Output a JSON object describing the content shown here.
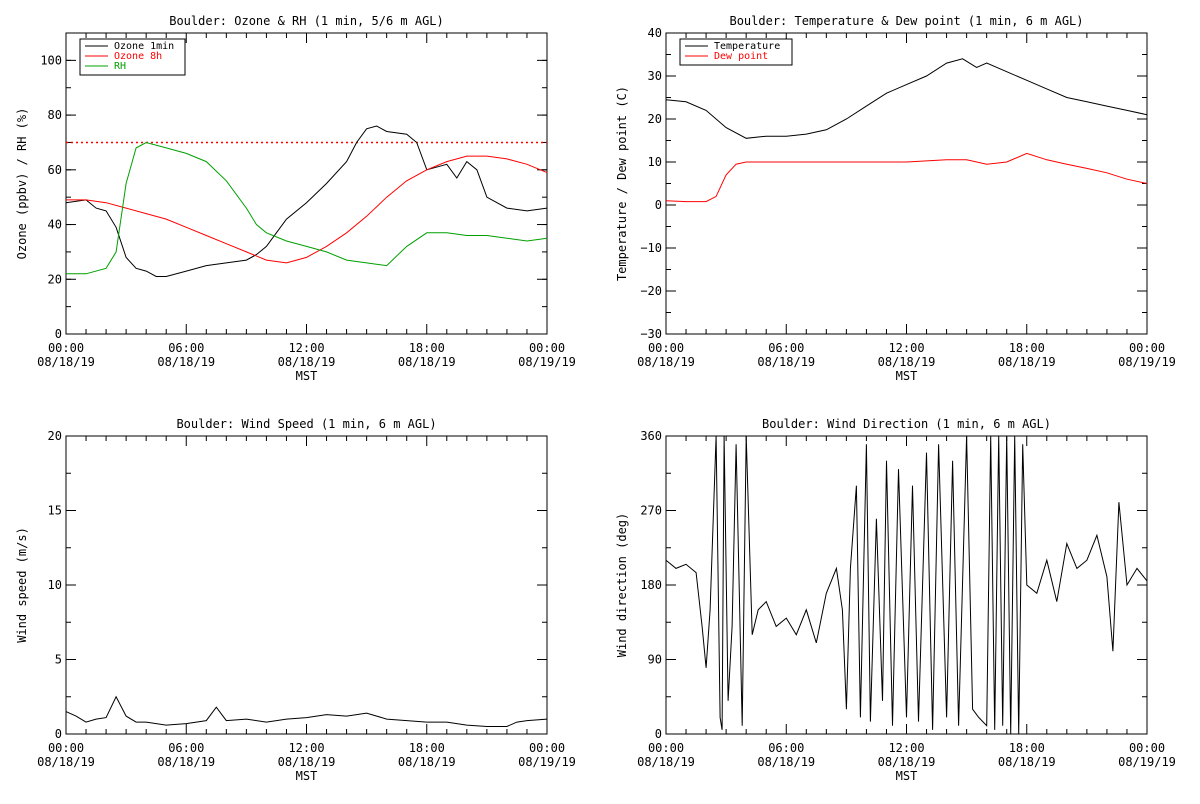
{
  "chart_data": [
    {
      "type": "line",
      "title": "Boulder: Ozone & RH (1 min, 5/6 m AGL)",
      "xlabel": "MST",
      "ylabel": "Ozone (ppbv) / RH (%)",
      "xlim": [
        0,
        24
      ],
      "ylim": [
        0,
        110
      ],
      "xticks": [
        {
          "time": "00:00",
          "date": "08/18/19"
        },
        {
          "time": "06:00",
          "date": "08/18/19"
        },
        {
          "time": "12:00",
          "date": "08/18/19"
        },
        {
          "time": "18:00",
          "date": "08/18/19"
        },
        {
          "time": "00:00",
          "date": "08/19/19"
        }
      ],
      "yticks": [
        "0",
        "20",
        "40",
        "60",
        "80",
        "100"
      ],
      "ytick_values": [
        0,
        20,
        40,
        60,
        80,
        100
      ],
      "legend": "top-left",
      "reference_line": {
        "y": 70,
        "color": "#ff0000",
        "style": "dotted"
      },
      "series": [
        {
          "name": "Ozone 1min",
          "color": "#000000",
          "x": [
            0,
            1,
            1.5,
            2,
            2.5,
            3,
            3.5,
            4,
            4.5,
            5,
            6,
            7,
            8,
            9,
            9.5,
            10,
            10.5,
            11,
            12,
            13,
            14,
            14.5,
            15,
            15.5,
            16,
            17,
            17.5,
            18,
            19,
            19.5,
            20,
            20.5,
            21,
            22,
            23,
            24
          ],
          "y": [
            48,
            49,
            46,
            45,
            39,
            28,
            24,
            23,
            21,
            21,
            23,
            25,
            26,
            27,
            29,
            32,
            37,
            42,
            48,
            55,
            63,
            70,
            75,
            76,
            74,
            73,
            70,
            60,
            62,
            57,
            63,
            60,
            50,
            46,
            45,
            46
          ]
        },
        {
          "name": "Ozone 8h",
          "color": "#ff0000",
          "x": [
            0,
            1,
            2,
            3,
            4,
            5,
            6,
            7,
            8,
            9,
            10,
            11,
            12,
            13,
            14,
            15,
            16,
            17,
            18,
            19,
            20,
            21,
            22,
            23,
            24
          ],
          "y": [
            49,
            49,
            48,
            46,
            44,
            42,
            39,
            36,
            33,
            30,
            27,
            26,
            28,
            32,
            37,
            43,
            50,
            56,
            60,
            63,
            65,
            65,
            64,
            62,
            59
          ]
        },
        {
          "name": "RH",
          "color": "#00a000",
          "x": [
            0,
            1,
            2,
            2.5,
            3,
            3.5,
            4,
            5,
            6,
            7,
            8,
            9,
            9.5,
            10,
            11,
            12,
            13,
            14,
            15,
            16,
            17,
            18,
            19,
            20,
            21,
            22,
            23,
            24
          ],
          "y": [
            22,
            22,
            24,
            30,
            55,
            68,
            70,
            68,
            66,
            63,
            56,
            46,
            40,
            37,
            34,
            32,
            30,
            27,
            26,
            25,
            32,
            37,
            37,
            36,
            36,
            35,
            34,
            35
          ]
        }
      ]
    },
    {
      "type": "line",
      "title": "Boulder: Temperature & Dew point (1 min, 6 m AGL)",
      "xlabel": "MST",
      "ylabel": "Temperature / Dew point (C)",
      "xlim": [
        0,
        24
      ],
      "ylim": [
        -30,
        40
      ],
      "xticks": [
        {
          "time": "00:00",
          "date": "08/18/19"
        },
        {
          "time": "06:00",
          "date": "08/18/19"
        },
        {
          "time": "12:00",
          "date": "08/18/19"
        },
        {
          "time": "18:00",
          "date": "08/18/19"
        },
        {
          "time": "00:00",
          "date": "08/19/19"
        }
      ],
      "yticks": [
        "−30",
        "−20",
        "−10",
        "0",
        "10",
        "20",
        "30",
        "40"
      ],
      "ytick_values": [
        -30,
        -20,
        -10,
        0,
        10,
        20,
        30,
        40
      ],
      "legend": "top-left",
      "series": [
        {
          "name": "Temperature",
          "color": "#000000",
          "x": [
            0,
            1,
            2,
            3,
            4,
            5,
            6,
            7,
            8,
            9,
            10,
            11,
            12,
            13,
            14,
            14.8,
            15.5,
            16,
            17,
            18,
            19,
            20,
            21,
            22,
            23,
            24
          ],
          "y": [
            24.5,
            24,
            22,
            18,
            15.5,
            16,
            16,
            16.5,
            17.5,
            20,
            23,
            26,
            28,
            30,
            33,
            34,
            32,
            33,
            31,
            29,
            27,
            25,
            24,
            23,
            22,
            21
          ]
        },
        {
          "name": "Dew point",
          "color": "#ff0000",
          "x": [
            0,
            1,
            2,
            2.5,
            3,
            3.5,
            4,
            6,
            8,
            10,
            12,
            14,
            15,
            16,
            17,
            18,
            19,
            20,
            21,
            22,
            23,
            24
          ],
          "y": [
            1,
            0.8,
            0.8,
            2,
            7,
            9.5,
            10,
            10,
            10,
            10,
            10,
            10.5,
            10.5,
            9.5,
            10,
            12,
            10.5,
            9.5,
            8.5,
            7.5,
            6,
            5
          ]
        }
      ]
    },
    {
      "type": "line",
      "title": "Boulder: Wind Speed (1 min, 6 m AGL)",
      "xlabel": "MST",
      "ylabel": "Wind speed (m/s)",
      "xlim": [
        0,
        24
      ],
      "ylim": [
        0,
        20
      ],
      "xticks": [
        {
          "time": "00:00",
          "date": "08/18/19"
        },
        {
          "time": "06:00",
          "date": "08/18/19"
        },
        {
          "time": "12:00",
          "date": "08/18/19"
        },
        {
          "time": "18:00",
          "date": "08/18/19"
        },
        {
          "time": "00:00",
          "date": "08/19/19"
        }
      ],
      "yticks": [
        "0",
        "5",
        "10",
        "15",
        "20"
      ],
      "ytick_values": [
        0,
        5,
        10,
        15,
        20
      ],
      "series": [
        {
          "color": "#000000",
          "x": [
            0,
            0.5,
            1,
            1.5,
            2,
            2.5,
            3,
            3.5,
            4,
            5,
            6,
            7,
            7.5,
            8,
            9,
            10,
            11,
            12,
            13,
            14,
            15,
            16,
            17,
            18,
            19,
            20,
            21,
            22,
            22.5,
            23,
            24
          ],
          "y": [
            1.5,
            1.2,
            0.8,
            1.0,
            1.1,
            2.5,
            1.2,
            0.8,
            0.8,
            0.6,
            0.7,
            0.9,
            1.8,
            0.9,
            1.0,
            0.8,
            1.0,
            1.1,
            1.3,
            1.2,
            1.4,
            1.0,
            0.9,
            0.8,
            0.8,
            0.6,
            0.5,
            0.5,
            0.8,
            0.9,
            1.0
          ]
        }
      ]
    },
    {
      "type": "line",
      "title": "Boulder: Wind Direction (1 min, 6 m AGL)",
      "xlabel": "MST",
      "ylabel": "Wind direction (deg)",
      "xlim": [
        0,
        24
      ],
      "ylim": [
        0,
        360
      ],
      "xticks": [
        {
          "time": "00:00",
          "date": "08/18/19"
        },
        {
          "time": "06:00",
          "date": "08/18/19"
        },
        {
          "time": "12:00",
          "date": "08/18/19"
        },
        {
          "time": "18:00",
          "date": "08/18/19"
        },
        {
          "time": "00:00",
          "date": "08/19/19"
        }
      ],
      "yticks": [
        "0",
        "90",
        "180",
        "270",
        "360"
      ],
      "ytick_values": [
        0,
        90,
        180,
        270,
        360
      ],
      "series": [
        {
          "color": "#000000",
          "x": [
            0,
            0.5,
            1,
            1.5,
            1.8,
            2,
            2.2,
            2.5,
            2.7,
            2.8,
            2.9,
            3.1,
            3.3,
            3.5,
            3.8,
            4,
            4.3,
            4.6,
            5,
            5.5,
            6,
            6.5,
            7,
            7.5,
            8,
            8.5,
            8.8,
            9,
            9.2,
            9.5,
            9.7,
            10,
            10.2,
            10.5,
            10.8,
            11,
            11.3,
            11.6,
            12,
            12.3,
            12.6,
            13,
            13.3,
            13.6,
            14,
            14.3,
            14.6,
            15,
            15.3,
            15.6,
            16,
            16.2,
            16.4,
            16.6,
            16.8,
            17,
            17.2,
            17.4,
            17.6,
            17.8,
            18,
            18.5,
            19,
            19.5,
            20,
            20.5,
            21,
            21.5,
            22,
            22.3,
            22.6,
            23,
            23.5,
            24
          ],
          "y": [
            210,
            200,
            205,
            195,
            130,
            80,
            150,
            360,
            20,
            5,
            360,
            40,
            130,
            350,
            10,
            360,
            120,
            150,
            160,
            130,
            140,
            120,
            150,
            110,
            170,
            200,
            150,
            30,
            200,
            300,
            20,
            350,
            15,
            260,
            40,
            330,
            10,
            320,
            20,
            300,
            15,
            340,
            5,
            350,
            20,
            330,
            10,
            360,
            30,
            20,
            10,
            360,
            5,
            360,
            10,
            360,
            0,
            360,
            0,
            350,
            180,
            170,
            210,
            160,
            230,
            200,
            210,
            240,
            190,
            100,
            280,
            180,
            200,
            185
          ]
        }
      ]
    }
  ]
}
